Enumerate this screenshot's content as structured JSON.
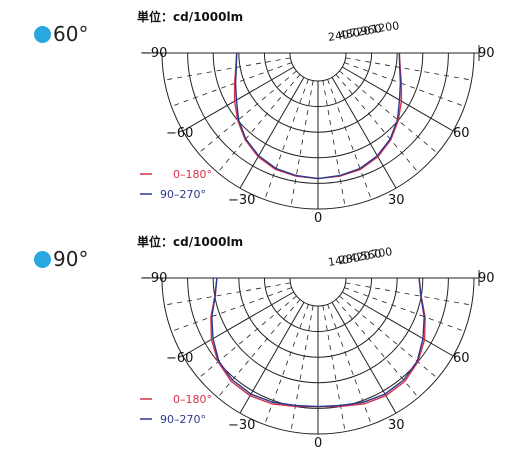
{
  "chart_data": [
    {
      "type": "polar",
      "badge": "60°",
      "unit_label": "単位：cd/1000lm",
      "radial_ticks": [
        240,
        480,
        720,
        960,
        1200
      ],
      "angle_labels": [
        "−90",
        "90",
        "−60",
        "60",
        "−30",
        "30",
        "0"
      ],
      "legend": [
        {
          "label": "0–180°",
          "color": "#d9304a"
        },
        {
          "label": "90–270°",
          "color": "#2c3a8c"
        }
      ],
      "series": [
        {
          "name": "0–180°",
          "color": "#d9304a",
          "angles": [
            0,
            10,
            20,
            30,
            40,
            50,
            60,
            70,
            80,
            90
          ],
          "values": [
            915,
            910,
            900,
            860,
            800,
            720,
            640,
            570,
            520,
            500
          ]
        },
        {
          "name": "90–270°",
          "color": "#2c3a8c",
          "angles": [
            0,
            10,
            20,
            30,
            40,
            50,
            60,
            70,
            80,
            90
          ],
          "values": [
            915,
            905,
            890,
            850,
            790,
            710,
            620,
            560,
            515,
            500
          ]
        }
      ]
    },
    {
      "type": "polar",
      "badge": "90°",
      "unit_label": "単位：cd/1000lm",
      "radial_ticks": [
        140,
        280,
        420,
        560,
        700
      ],
      "angle_labels": [
        "−90",
        "90",
        "−60",
        "60",
        "−30",
        "30",
        "0"
      ],
      "legend": [
        {
          "label": "0–180°",
          "color": "#d9304a"
        },
        {
          "label": "90–270°",
          "color": "#2c3a8c"
        }
      ],
      "series": [
        {
          "name": "0–180°",
          "color": "#d9304a",
          "angles": [
            0,
            10,
            20,
            30,
            40,
            50,
            60,
            70,
            80,
            90
          ],
          "values": [
            550,
            560,
            580,
            590,
            585,
            560,
            520,
            470,
            420,
            400
          ]
        },
        {
          "name": "90–270°",
          "color": "#2c3a8c",
          "angles": [
            0,
            10,
            20,
            30,
            40,
            50,
            60,
            70,
            80,
            90
          ],
          "values": [
            550,
            555,
            570,
            580,
            575,
            555,
            510,
            465,
            418,
            400
          ]
        }
      ]
    }
  ]
}
